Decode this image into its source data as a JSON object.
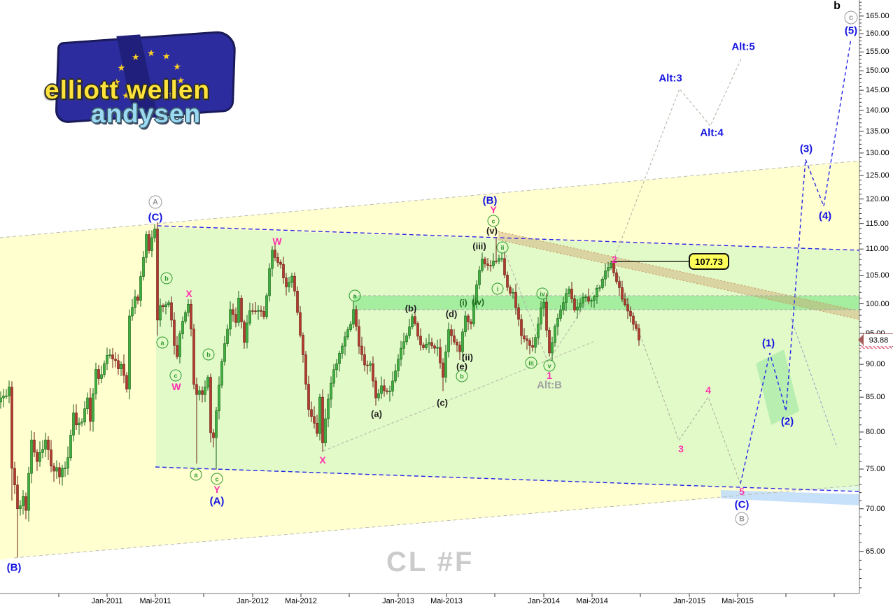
{
  "watermark": "CL #F",
  "logo": {
    "line1": "elliott wellen",
    "line2": "andysen",
    "stars": 9
  },
  "tags": {
    "target_price": "107.73",
    "last_price": "93.88"
  },
  "top_right_label": "b",
  "chart_data": {
    "type": "candlestick",
    "symbol": "CL #F",
    "timeframe": "weekly",
    "y_axis": {
      "scale": "log",
      "label_min": 65,
      "label_max": 170,
      "label_step": 5,
      "minor_step": 1,
      "unit": "USD"
    },
    "transform": {
      "x0": 1,
      "xstep": 4,
      "ya": 4220,
      "yb": 822,
      "axis_x": 1228,
      "axis_y": 849
    },
    "x_ticks": [
      {
        "x": 84
      },
      {
        "x": 153,
        "label": "Jan-2011"
      },
      {
        "x": 222,
        "label": "Mai-2011"
      },
      {
        "x": 291
      },
      {
        "x": 361,
        "label": "Jan-2012"
      },
      {
        "x": 430,
        "label": "Mai-2012"
      },
      {
        "x": 499
      },
      {
        "x": 569,
        "label": "Jan-2013"
      },
      {
        "x": 638,
        "label": "Mai-2013"
      },
      {
        "x": 707
      },
      {
        "x": 777,
        "label": "Jan-2014"
      },
      {
        "x": 846,
        "label": "Mai-2014"
      },
      {
        "x": 915
      },
      {
        "x": 985,
        "label": "Jan-2015"
      },
      {
        "x": 1054,
        "label": "Mai-2015"
      },
      {
        "x": 1123
      },
      {
        "x": 1192
      }
    ],
    "candles": {
      "weeks": 229,
      "start_label": "Apr-2010",
      "up_fill": "#3fae3f",
      "up_stroke": "#135f13",
      "down_fill": "#b03a2e",
      "down_stroke": "#6b1d15",
      "anchors": [
        [
          0,
          84.9
        ],
        [
          2,
          85.2
        ],
        [
          3,
          86.5
        ],
        [
          4,
          75.1
        ],
        [
          6,
          70.0
        ],
        [
          8,
          71.5
        ],
        [
          9,
          69.8
        ],
        [
          11,
          78.9
        ],
        [
          13,
          76.0
        ],
        [
          14,
          77.2
        ],
        [
          16,
          78.9
        ],
        [
          18,
          75.4
        ],
        [
          20,
          75.2
        ],
        [
          21,
          74.0
        ],
        [
          24,
          76.5
        ],
        [
          26,
          82.7
        ],
        [
          27,
          81.0
        ],
        [
          29,
          81.4
        ],
        [
          31,
          84.9
        ],
        [
          32,
          81.5
        ],
        [
          34,
          89.2
        ],
        [
          35,
          87.8
        ],
        [
          38,
          91.4
        ],
        [
          39,
          91.5
        ],
        [
          42,
          89.3
        ],
        [
          43,
          90.0
        ],
        [
          45,
          86.2
        ],
        [
          46,
          97.9
        ],
        [
          48,
          101.2
        ],
        [
          49,
          100.6
        ],
        [
          52,
          112.8
        ],
        [
          53,
          109.7
        ],
        [
          55,
          113.9
        ],
        [
          56,
          97.2
        ],
        [
          57,
          99.7
        ],
        [
          58,
          99.5
        ],
        [
          60,
          100.2
        ],
        [
          62,
          93.0
        ],
        [
          63,
          91.2
        ],
        [
          64,
          94.9
        ],
        [
          65,
          97.0
        ],
        [
          67,
          99.9
        ],
        [
          68,
          95.7
        ],
        [
          69,
          86.9
        ],
        [
          70,
          85.4
        ],
        [
          72,
          85.4
        ],
        [
          74,
          88.0
        ],
        [
          75,
          79.9
        ],
        [
          76,
          79.2
        ],
        [
          77,
          83.0
        ],
        [
          78,
          86.8
        ],
        [
          80,
          93.3
        ],
        [
          82,
          99.0
        ],
        [
          84,
          96.8
        ],
        [
          85,
          101.0
        ],
        [
          87,
          93.5
        ],
        [
          89,
          98.8
        ],
        [
          91,
          98.7
        ],
        [
          94,
          97.8
        ],
        [
          97,
          109.8
        ],
        [
          100,
          107.1
        ],
        [
          102,
          103.0
        ],
        [
          104,
          104.9
        ],
        [
          106,
          98.5
        ],
        [
          108,
          91.5
        ],
        [
          110,
          83.2
        ],
        [
          113,
          79.8
        ],
        [
          114,
          85.0
        ],
        [
          115,
          78.5
        ],
        [
          118,
          87.1
        ],
        [
          120,
          90.1
        ],
        [
          122,
          92.9
        ],
        [
          125,
          96.5
        ],
        [
          126,
          99.0
        ],
        [
          128,
          92.9
        ],
        [
          130,
          89.9
        ],
        [
          132,
          90.1
        ],
        [
          134,
          84.9
        ],
        [
          136,
          86.7
        ],
        [
          139,
          85.9
        ],
        [
          142,
          90.8
        ],
        [
          144,
          93.6
        ],
        [
          147,
          97.8
        ],
        [
          150,
          93.1
        ],
        [
          153,
          93.5
        ],
        [
          156,
          92.7
        ],
        [
          158,
          88.0
        ],
        [
          160,
          95.6
        ],
        [
          164,
          92.0
        ],
        [
          166,
          97.9
        ],
        [
          168,
          96.6
        ],
        [
          171,
          106.0
        ],
        [
          172,
          108.1
        ],
        [
          174,
          106.9
        ],
        [
          177,
          107.7
        ],
        [
          179,
          108.2
        ],
        [
          181,
          102.9
        ],
        [
          183,
          102.0
        ],
        [
          186,
          94.6
        ],
        [
          188,
          93.8
        ],
        [
          190,
          92.7
        ],
        [
          193,
          99.3
        ],
        [
          194,
          100.3
        ],
        [
          195,
          95.5
        ],
        [
          196,
          91.8
        ],
        [
          199,
          97.5
        ],
        [
          203,
          102.6
        ],
        [
          205,
          98.9
        ],
        [
          208,
          101.1
        ],
        [
          211,
          100.6
        ],
        [
          215,
          104.4
        ],
        [
          218,
          107.3
        ],
        [
          222,
          100.8
        ],
        [
          225,
          97.9
        ],
        [
          228,
          93.88
        ]
      ],
      "special_wicks": {
        "4": {
          "l": 71.0
        },
        "6": {
          "l": 64.3
        },
        "52": {
          "h": 113.46
        },
        "55": {
          "h": 114.83
        },
        "56": {
          "l": 94.6
        },
        "70": {
          "l": 75.71
        },
        "77": {
          "l": 74.95
        },
        "97": {
          "h": 110.55
        },
        "115": {
          "l": 77.28
        },
        "126": {
          "h": 100.42
        },
        "158": {
          "l": 85.9
        },
        "172": {
          "h": 109.32
        },
        "177": {
          "h": 112.24
        },
        "196": {
          "l": 91.24
        },
        "218": {
          "h": 107.73
        }
      }
    },
    "zones": [
      {
        "name": "yellow-channel",
        "pts": [
          [
            0,
            340
          ],
          [
            1228,
            230
          ],
          [
            1228,
            695
          ],
          [
            20,
            798
          ],
          [
            0,
            801
          ]
        ],
        "fill": "#ffffcf"
      },
      {
        "name": "green-zone-large",
        "pts": [
          [
            223,
            325
          ],
          [
            1228,
            359
          ],
          [
            1228,
            702
          ],
          [
            223,
            669
          ]
        ],
        "fill": "rgba(190,245,190,0.45)"
      },
      {
        "name": "green-band",
        "pts": [
          [
            505,
            423
          ],
          [
            1228,
            423
          ],
          [
            1228,
            443
          ],
          [
            505,
            443
          ]
        ],
        "fill": "rgba(150,235,150,0.8)"
      },
      {
        "name": "tan-band",
        "pts": [
          [
            712,
            331
          ],
          [
            1228,
            445
          ],
          [
            1228,
            457
          ],
          [
            712,
            343
          ]
        ],
        "fill": "rgba(205,155,105,0.4)"
      },
      {
        "name": "blue-band",
        "pts": [
          [
            1030,
            701
          ],
          [
            1228,
            707
          ],
          [
            1228,
            723
          ],
          [
            1030,
            713
          ]
        ],
        "fill": "rgba(190,220,250,0.85)"
      },
      {
        "name": "green-quad-small",
        "pts": [
          [
            1080,
            520
          ],
          [
            1120,
            500
          ],
          [
            1142,
            588
          ],
          [
            1102,
            608
          ]
        ],
        "fill": "rgba(170,235,170,0.75)"
      }
    ],
    "lines": [
      {
        "name": "channel-top",
        "pts": [
          [
            0,
            340
          ],
          [
            1228,
            230
          ]
        ],
        "color": "#b9b9b9",
        "dash": "5,4",
        "w": 1
      },
      {
        "name": "channel-bottom",
        "pts": [
          [
            20,
            798
          ],
          [
            1228,
            694
          ]
        ],
        "color": "#b9b9b9",
        "dash": "5,4",
        "w": 1
      },
      {
        "name": "resistance-blue-top",
        "pts": [
          [
            225,
            323
          ],
          [
            1228,
            358
          ]
        ],
        "color": "#2525e8",
        "dash": "6,4",
        "w": 1.4
      },
      {
        "name": "support-blue-bottom",
        "pts": [
          [
            222,
            668
          ],
          [
            1228,
            703
          ]
        ],
        "color": "#2525e8",
        "dash": "6,4",
        "w": 1.4
      },
      {
        "name": "blue-forecast-zigzag",
        "pts": [
          [
            1058,
            692
          ],
          [
            1100,
            505
          ],
          [
            1123,
            588
          ],
          [
            1151,
            228
          ],
          [
            1177,
            295
          ],
          [
            1216,
            55
          ]
        ],
        "color": "#2525e8",
        "dash": "5,4",
        "w": 1.4
      },
      {
        "name": "gray-path-345",
        "pts": [
          [
            876,
            374
          ],
          [
            970,
            630
          ],
          [
            1012,
            568
          ],
          [
            1058,
            692
          ]
        ],
        "color": "#aaaa98",
        "dash": "4,3",
        "w": 1
      },
      {
        "name": "gray-alt-path",
        "pts": [
          [
            718,
            352
          ],
          [
            783,
            518
          ],
          [
            876,
            374
          ],
          [
            971,
            127
          ],
          [
            1015,
            180
          ],
          [
            1059,
            84
          ]
        ],
        "color": "#b0b0a2",
        "dash": "4,3",
        "w": 1
      },
      {
        "name": "triangle-lower",
        "pts": [
          [
            462,
            645
          ],
          [
            850,
            488
          ]
        ],
        "color": "#b8b8a8",
        "dash": "4,3",
        "w": 1
      },
      {
        "name": "steep-right-line",
        "pts": [
          [
            1130,
            455
          ],
          [
            1196,
            640
          ]
        ],
        "color": "#9c9cc8",
        "dash": "4,3",
        "w": 1
      },
      {
        "name": "tan-band-edge-top",
        "pts": [
          [
            712,
            331
          ],
          [
            1228,
            445
          ]
        ],
        "color": "#c89664",
        "dash": "2,3",
        "w": 1
      },
      {
        "name": "tan-band-edge-bottom",
        "pts": [
          [
            712,
            343
          ],
          [
            1228,
            457
          ]
        ],
        "color": "#c89664",
        "dash": "2,3",
        "w": 1
      },
      {
        "name": "green-band-edge-top",
        "pts": [
          [
            505,
            423
          ],
          [
            1228,
            423
          ]
        ],
        "color": "#a8a8a8",
        "dash": "4,3",
        "w": 1
      },
      {
        "name": "green-band-edge-bottom",
        "pts": [
          [
            505,
            443
          ],
          [
            1228,
            443
          ]
        ],
        "color": "#a8a8a8",
        "dash": "4,3",
        "w": 1
      },
      {
        "name": "target-connector",
        "pts": [
          [
            873,
            374
          ],
          [
            984,
            374
          ]
        ],
        "color": "#000",
        "dash": "",
        "w": 1.2
      }
    ],
    "annotations": [
      {
        "t": "A",
        "x": 222,
        "y": 289,
        "s": "cy"
      },
      {
        "t": "(C)",
        "x": 222,
        "y": 311,
        "s": "blue"
      },
      {
        "t": "b",
        "x": 238,
        "y": 398,
        "s": "cg"
      },
      {
        "t": "X",
        "x": 270,
        "y": 420,
        "s": "pink"
      },
      {
        "t": "a",
        "x": 232,
        "y": 490,
        "s": "cg"
      },
      {
        "t": "b",
        "x": 298,
        "y": 507,
        "s": "cg"
      },
      {
        "t": "c",
        "x": 251,
        "y": 537,
        "s": "cg"
      },
      {
        "t": "W",
        "x": 252,
        "y": 553,
        "s": "pink"
      },
      {
        "t": "a",
        "x": 280,
        "y": 679,
        "s": "cg"
      },
      {
        "t": "c",
        "x": 310,
        "y": 685,
        "s": "cg"
      },
      {
        "t": "Y",
        "x": 310,
        "y": 700,
        "s": "pink"
      },
      {
        "t": "(A)",
        "x": 310,
        "y": 717,
        "s": "blue"
      },
      {
        "t": "(B)",
        "x": 20,
        "y": 812,
        "s": "blue"
      },
      {
        "t": "W",
        "x": 396,
        "y": 345,
        "s": "pink"
      },
      {
        "t": "X",
        "x": 461,
        "y": 658,
        "s": "pink"
      },
      {
        "t": "a",
        "x": 507,
        "y": 423,
        "s": "cg"
      },
      {
        "t": "(a)",
        "x": 538,
        "y": 592,
        "s": "black"
      },
      {
        "t": "(b)",
        "x": 587,
        "y": 441,
        "s": "black"
      },
      {
        "t": "(c)",
        "x": 632,
        "y": 576,
        "s": "black"
      },
      {
        "t": "(d)",
        "x": 645,
        "y": 449,
        "s": "black"
      },
      {
        "t": "(e)",
        "x": 660,
        "y": 524,
        "s": "black"
      },
      {
        "t": "(ii)",
        "x": 668,
        "y": 511,
        "s": "black"
      },
      {
        "t": "b",
        "x": 660,
        "y": 538,
        "s": "cg"
      },
      {
        "t": "(i)",
        "x": 662,
        "y": 433,
        "s": "greenb"
      },
      {
        "t": "(iv)",
        "x": 683,
        "y": 432,
        "s": "greenb"
      },
      {
        "t": "(iii)",
        "x": 685,
        "y": 352,
        "s": "black"
      },
      {
        "t": "(v)",
        "x": 703,
        "y": 330,
        "s": "black"
      },
      {
        "t": "c",
        "x": 705,
        "y": 316,
        "s": "cg"
      },
      {
        "t": "Y",
        "x": 705,
        "y": 300,
        "s": "pink"
      },
      {
        "t": "(B)",
        "x": 700,
        "y": 287,
        "s": "blue"
      },
      {
        "t": "i",
        "x": 711,
        "y": 413,
        "s": "cg"
      },
      {
        "t": "ii",
        "x": 718,
        "y": 354,
        "s": "cg"
      },
      {
        "t": "iii",
        "x": 759,
        "y": 519,
        "s": "cg"
      },
      {
        "t": "iv",
        "x": 775,
        "y": 420,
        "s": "cg"
      },
      {
        "t": "v",
        "x": 785,
        "y": 523,
        "s": "cg"
      },
      {
        "t": "1",
        "x": 785,
        "y": 537,
        "s": "pink"
      },
      {
        "t": "Alt:B",
        "x": 785,
        "y": 551,
        "s": "gray"
      },
      {
        "t": "2",
        "x": 878,
        "y": 371,
        "s": "pink"
      },
      {
        "t": "3",
        "x": 973,
        "y": 642,
        "s": "pink"
      },
      {
        "t": "4",
        "x": 1012,
        "y": 558,
        "s": "pink"
      },
      {
        "t": "5",
        "x": 1060,
        "y": 703,
        "s": "pink"
      },
      {
        "t": "(C)",
        "x": 1060,
        "y": 722,
        "s": "blue"
      },
      {
        "t": "B",
        "x": 1060,
        "y": 742,
        "s": "cy"
      },
      {
        "t": "Alt:3",
        "x": 958,
        "y": 112,
        "s": "blue"
      },
      {
        "t": "Alt:4",
        "x": 1017,
        "y": 190,
        "s": "blue"
      },
      {
        "t": "Alt:5",
        "x": 1062,
        "y": 67,
        "s": "blue"
      },
      {
        "t": "(1)",
        "x": 1098,
        "y": 491,
        "s": "blue"
      },
      {
        "t": "(2)",
        "x": 1125,
        "y": 603,
        "s": "blue"
      },
      {
        "t": "(3)",
        "x": 1152,
        "y": 213,
        "s": "blue"
      },
      {
        "t": "(4)",
        "x": 1179,
        "y": 309,
        "s": "blue"
      },
      {
        "t": "(5)",
        "x": 1216,
        "y": 44,
        "s": "blue"
      },
      {
        "t": "c",
        "x": 1216,
        "y": 25,
        "s": "cy"
      },
      {
        "t": "b",
        "x": 1196,
        "y": 9,
        "s": "blackb"
      }
    ]
  }
}
